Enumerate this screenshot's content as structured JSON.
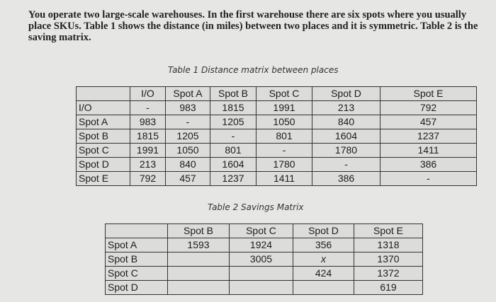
{
  "intro": "You operate two large-scale warehouses. In the first warehouse there are six spots where you usually place SKUs. Table 1 shows the distance (in miles) between two places and it is symmetric. Table 2 is the saving matrix.",
  "table1": {
    "caption": "Table 1 Distance matrix between places",
    "headers": [
      "",
      "I/O",
      "Spot A",
      "Spot B",
      "Spot C",
      "Spot D",
      "Spot E"
    ],
    "rows": [
      [
        "I/O",
        "-",
        "983",
        "1815",
        "1991",
        "213",
        "792"
      ],
      [
        "Spot A",
        "983",
        "-",
        "1205",
        "1050",
        "840",
        "457"
      ],
      [
        "Spot B",
        "1815",
        "1205",
        "-",
        "801",
        "1604",
        "1237"
      ],
      [
        "Spot C",
        "1991",
        "1050",
        "801",
        "-",
        "1780",
        "1411"
      ],
      [
        "Spot D",
        "213",
        "840",
        "1604",
        "1780",
        "-",
        "386"
      ],
      [
        "Spot E",
        "792",
        "457",
        "1237",
        "1411",
        "386",
        "-"
      ]
    ]
  },
  "table2": {
    "caption": "Table 2 Savings Matrix",
    "headers": [
      "",
      "Spot B",
      "Spot C",
      "Spot D",
      "Spot E"
    ],
    "rows": [
      [
        "Spot A",
        "1593",
        "1924",
        "356",
        "1318"
      ],
      [
        "Spot B",
        "",
        "3005",
        "x",
        "1370"
      ],
      [
        "Spot C",
        "",
        "",
        "424",
        "1372"
      ],
      [
        "Spot D",
        "",
        "",
        "",
        "619"
      ]
    ]
  }
}
